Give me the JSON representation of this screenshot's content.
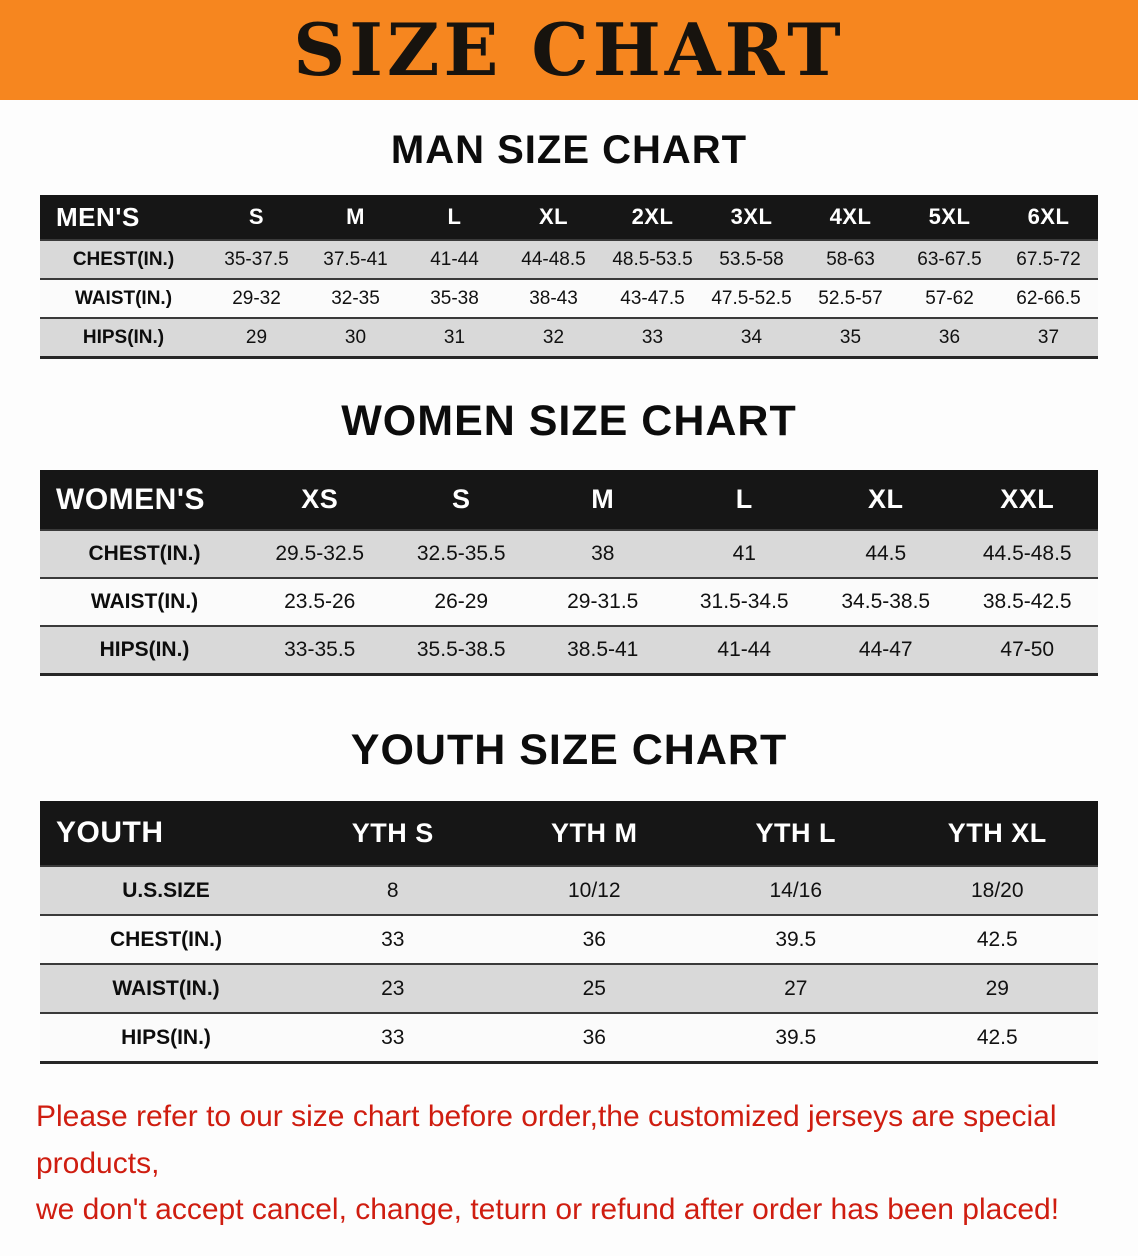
{
  "banner": {
    "title": "SIZE CHART",
    "bg_color": "#f6861f",
    "text_color": "#17130e"
  },
  "colors": {
    "table_header_bg": "#161616",
    "row_gray": "#d9d9d9",
    "row_white": "#fbfbfb",
    "note_red": "#cf1d10"
  },
  "sections": [
    {
      "id": "men",
      "heading": "MAN SIZE CHART",
      "table": {
        "title": "MEN'S",
        "sizes": [
          "S",
          "M",
          "L",
          "XL",
          "2XL",
          "3XL",
          "4XL",
          "5XL",
          "6XL"
        ],
        "rows": [
          {
            "label": "CHEST(IN.)",
            "values": [
              "35-37.5",
              "37.5-41",
              "41-44",
              "44-48.5",
              "48.5-53.5",
              "53.5-58",
              "58-63",
              "63-67.5",
              "67.5-72"
            ]
          },
          {
            "label": "WAIST(IN.)",
            "values": [
              "29-32",
              "32-35",
              "35-38",
              "38-43",
              "43-47.5",
              "47.5-52.5",
              "52.5-57",
              "57-62",
              "62-66.5"
            ]
          },
          {
            "label": "HIPS(IN.)",
            "values": [
              "29",
              "30",
              "31",
              "32",
              "33",
              "34",
              "35",
              "36",
              "37"
            ]
          }
        ]
      }
    },
    {
      "id": "women",
      "heading": "WOMEN SIZE CHART",
      "table": {
        "title": "WOMEN'S",
        "sizes": [
          "XS",
          "S",
          "M",
          "L",
          "XL",
          "XXL"
        ],
        "rows": [
          {
            "label": "CHEST(IN.)",
            "values": [
              "29.5-32.5",
              "32.5-35.5",
              "38",
              "41",
              "44.5",
              "44.5-48.5"
            ]
          },
          {
            "label": "WAIST(IN.)",
            "values": [
              "23.5-26",
              "26-29",
              "29-31.5",
              "31.5-34.5",
              "34.5-38.5",
              "38.5-42.5"
            ]
          },
          {
            "label": "HIPS(IN.)",
            "values": [
              "33-35.5",
              "35.5-38.5",
              "38.5-41",
              "41-44",
              "44-47",
              "47-50"
            ]
          }
        ]
      }
    },
    {
      "id": "youth",
      "heading": "YOUTH SIZE CHART",
      "table": {
        "title": "YOUTH",
        "sizes": [
          "YTH S",
          "YTH M",
          "YTH L",
          "YTH XL"
        ],
        "rows": [
          {
            "label": "U.S.SIZE",
            "values": [
              "8",
              "10/12",
              "14/16",
              "18/20"
            ]
          },
          {
            "label": "CHEST(IN.)",
            "values": [
              "33",
              "36",
              "39.5",
              "42.5"
            ]
          },
          {
            "label": "WAIST(IN.)",
            "values": [
              "23",
              "25",
              "27",
              "29"
            ]
          },
          {
            "label": "HIPS(IN.)",
            "values": [
              "33",
              "36",
              "39.5",
              "42.5"
            ]
          }
        ]
      }
    }
  ],
  "footer": {
    "line1": "Please refer to our size chart before order,the customized jerseys are special products,",
    "line2": "we don't accept cancel, change, teturn or refund after order has been placed!"
  }
}
